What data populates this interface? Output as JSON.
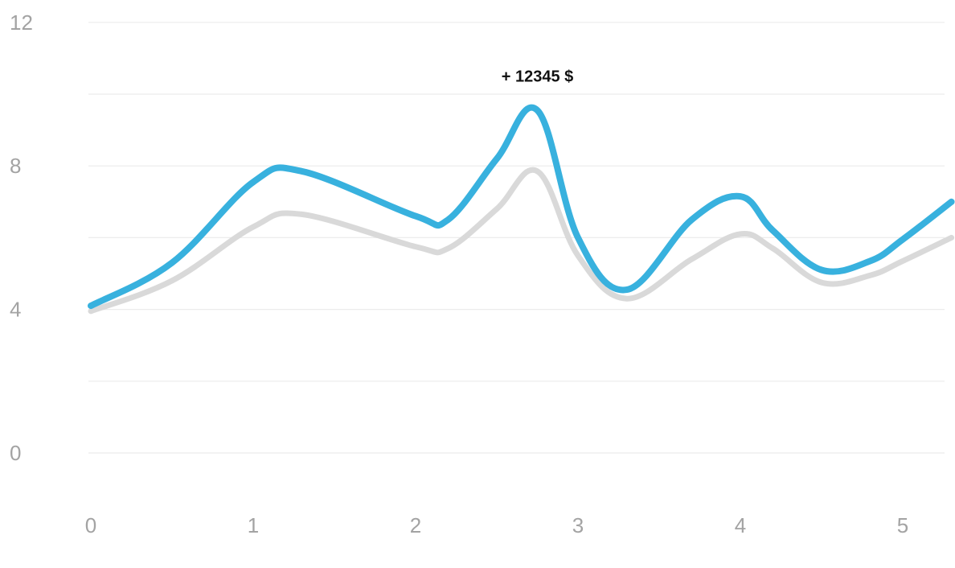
{
  "chart_data": {
    "type": "line",
    "title": "",
    "xlabel": "",
    "ylabel": "",
    "xlim": [
      0,
      5.3
    ],
    "ylim": [
      0,
      12
    ],
    "grid": true,
    "x_ticks": [
      "0",
      "1",
      "2",
      "3",
      "4",
      "5"
    ],
    "y_ticks": [
      "0",
      "4",
      "8",
      "12"
    ],
    "series": [
      {
        "color": "#d9d9d9",
        "points": [
          [
            0,
            3.95
          ],
          [
            0.5,
            4.8
          ],
          [
            1.0,
            6.3
          ],
          [
            1.3,
            6.65
          ],
          [
            2.0,
            5.75
          ],
          [
            2.2,
            5.7
          ],
          [
            2.5,
            6.8
          ],
          [
            2.75,
            7.85
          ],
          [
            3.0,
            5.5
          ],
          [
            3.3,
            4.3
          ],
          [
            3.7,
            5.4
          ],
          [
            4.0,
            6.1
          ],
          [
            4.2,
            5.7
          ],
          [
            4.5,
            4.75
          ],
          [
            4.8,
            4.95
          ],
          [
            5.0,
            5.35
          ],
          [
            5.3,
            6.0
          ]
        ]
      },
      {
        "color": "#38b1de",
        "points": [
          [
            0,
            4.1
          ],
          [
            0.5,
            5.3
          ],
          [
            1.0,
            7.55
          ],
          [
            1.3,
            7.85
          ],
          [
            2.0,
            6.6
          ],
          [
            2.2,
            6.5
          ],
          [
            2.5,
            8.2
          ],
          [
            2.75,
            9.55
          ],
          [
            3.0,
            6.0
          ],
          [
            3.3,
            4.55
          ],
          [
            3.7,
            6.5
          ],
          [
            4.0,
            7.15
          ],
          [
            4.2,
            6.2
          ],
          [
            4.5,
            5.1
          ],
          [
            4.8,
            5.35
          ],
          [
            5.0,
            5.95
          ],
          [
            5.3,
            7.0
          ]
        ]
      }
    ],
    "annotations": [
      {
        "text": "+ 12345 $",
        "x": 2.75,
        "y": 10.5
      }
    ]
  }
}
